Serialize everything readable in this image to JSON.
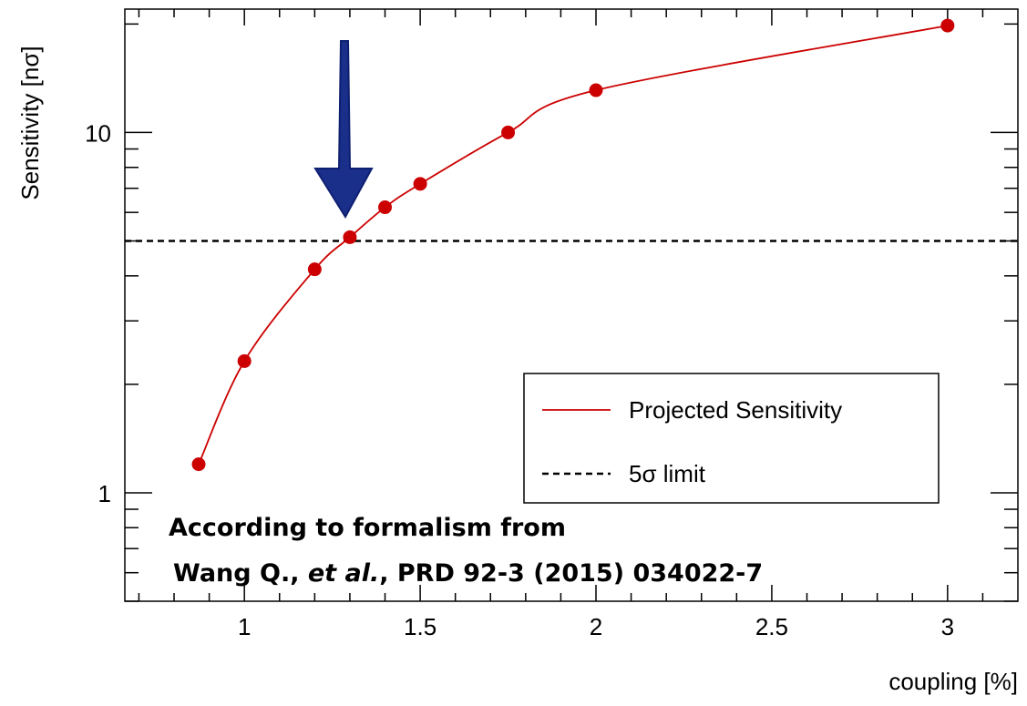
{
  "chart_data": {
    "type": "scatter",
    "x_label": "coupling [%]",
    "y_label": "Sensitivity [nσ]",
    "log_y": true,
    "xlim": [
      0.66,
      3.2
    ],
    "ylim": [
      0.5,
      22
    ],
    "xticks": [
      1,
      1.5,
      2,
      2.5,
      3
    ],
    "xminorticks": [
      0.7,
      0.8,
      0.9,
      1.1,
      1.2,
      1.3,
      1.4,
      1.6,
      1.7,
      1.8,
      1.9,
      2.1,
      2.2,
      2.3,
      2.4,
      2.6,
      2.7,
      2.8,
      2.9,
      3.1
    ],
    "yticks": [
      1,
      10
    ],
    "yminorticks": [
      0.5,
      0.6,
      0.7,
      0.8,
      0.9,
      2,
      3,
      4,
      5,
      6,
      7,
      8,
      9,
      20
    ],
    "series": [
      {
        "name": "Projected Sensitivity",
        "color": "#cc0000",
        "x": [
          0.87,
          1.0,
          1.2,
          1.3,
          1.4,
          1.5,
          1.75,
          2.0,
          3.0
        ],
        "values": [
          1.2,
          2.32,
          4.17,
          5.12,
          6.2,
          7.2,
          10,
          13.1,
          19.8
        ]
      }
    ],
    "hlines": [
      {
        "name": "5σ limit",
        "value": 5,
        "color": "#000000",
        "style": "dashed"
      }
    ],
    "annotation_line1": "According to formalism from",
    "annotation_line2": [
      "Wang Q., ",
      "et al.",
      ", PRD 92-3 (2015) 034022-7"
    ]
  }
}
